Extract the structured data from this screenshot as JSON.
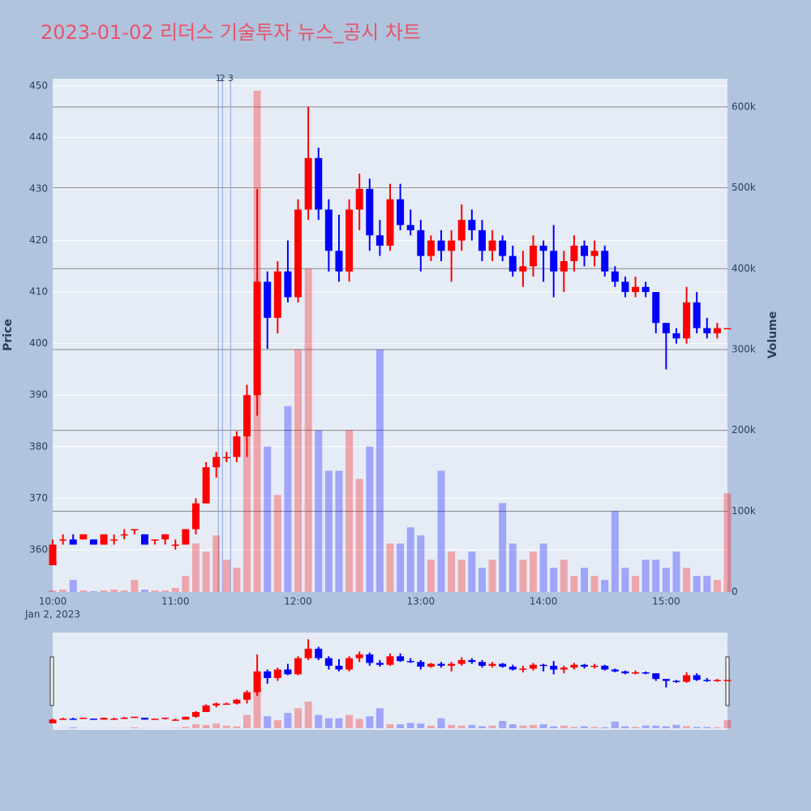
{
  "chart_data": {
    "type": "candlestick",
    "title": "2023-01-02 리더스 기술투자 뉴스_공시 차트",
    "y_label": "Price",
    "y2_label": "Volume",
    "x_sublabel": "Jan 2, 2023",
    "increasing_color": "#ff0000",
    "decreasing_color": "#0000ff",
    "x": [
      "2023-01-02 10:00",
      "2023-01-02 10:05",
      "2023-01-02 10:10",
      "2023-01-02 10:15",
      "2023-01-02 10:20",
      "2023-01-02 10:25",
      "2023-01-02 10:30",
      "2023-01-02 10:35",
      "2023-01-02 10:40",
      "2023-01-02 10:45",
      "2023-01-02 10:50",
      "2023-01-02 10:55",
      "2023-01-02 11:00",
      "2023-01-02 11:05",
      "2023-01-02 11:10",
      "2023-01-02 11:15",
      "2023-01-02 11:20",
      "2023-01-02 11:25",
      "2023-01-02 11:30",
      "2023-01-02 11:35",
      "2023-01-02 11:40",
      "2023-01-02 11:45",
      "2023-01-02 11:50",
      "2023-01-02 11:55",
      "2023-01-02 12:00",
      "2023-01-02 12:05",
      "2023-01-02 12:10",
      "2023-01-02 12:15",
      "2023-01-02 12:20",
      "2023-01-02 12:25",
      "2023-01-02 12:30",
      "2023-01-02 12:35",
      "2023-01-02 12:40",
      "2023-01-02 12:45",
      "2023-01-02 12:50",
      "2023-01-02 12:55",
      "2023-01-02 13:00",
      "2023-01-02 13:05",
      "2023-01-02 13:10",
      "2023-01-02 13:15",
      "2023-01-02 13:20",
      "2023-01-02 13:25",
      "2023-01-02 13:30",
      "2023-01-02 13:35",
      "2023-01-02 13:40",
      "2023-01-02 13:45",
      "2023-01-02 13:50",
      "2023-01-02 13:55",
      "2023-01-02 14:00",
      "2023-01-02 14:05",
      "2023-01-02 14:10",
      "2023-01-02 14:15",
      "2023-01-02 14:20",
      "2023-01-02 14:25",
      "2023-01-02 14:30",
      "2023-01-02 14:35",
      "2023-01-02 14:40",
      "2023-01-02 14:45",
      "2023-01-02 14:50",
      "2023-01-02 14:55",
      "2023-01-02 15:00",
      "2023-01-02 15:05",
      "2023-01-02 15:10",
      "2023-01-02 15:15",
      "2023-01-02 15:20",
      "2023-01-02 15:25",
      "2023-01-02 15:30"
    ],
    "open": [
      357,
      362,
      362,
      362,
      362,
      361,
      362,
      363,
      364,
      363,
      362,
      362,
      361,
      361,
      364,
      369,
      376,
      378,
      378,
      382,
      390,
      412,
      405,
      414,
      409,
      426,
      436,
      426,
      418,
      414,
      426,
      430,
      421,
      419,
      428,
      423,
      422,
      417,
      420,
      418,
      420,
      424,
      422,
      418,
      420,
      417,
      414,
      415,
      419,
      418,
      414,
      416,
      419,
      417,
      418,
      414,
      412,
      410,
      411,
      410,
      404,
      402,
      401,
      408,
      403,
      402,
      403
    ],
    "high": [
      362,
      363,
      363,
      363,
      362,
      363,
      363,
      364,
      364,
      363,
      362,
      363,
      362,
      364,
      370,
      377,
      379,
      379,
      383,
      392,
      430,
      414,
      416,
      420,
      428,
      446,
      438,
      428,
      425,
      428,
      433,
      432,
      424,
      431,
      431,
      426,
      424,
      421,
      422,
      422,
      427,
      426,
      424,
      422,
      421,
      419,
      418,
      421,
      420,
      423,
      418,
      421,
      420,
      420,
      419,
      415,
      413,
      413,
      412,
      410,
      404,
      403,
      411,
      410,
      405,
      404,
      403
    ],
    "low": [
      357,
      361,
      361,
      362,
      361,
      361,
      361,
      362,
      363,
      361,
      361,
      361,
      360,
      361,
      363,
      369,
      374,
      377,
      377,
      378,
      386,
      399,
      402,
      408,
      408,
      424,
      424,
      414,
      412,
      412,
      422,
      418,
      417,
      418,
      422,
      421,
      414,
      416,
      416,
      412,
      418,
      420,
      416,
      416,
      416,
      413,
      411,
      413,
      412,
      409,
      410,
      414,
      415,
      415,
      413,
      411,
      409,
      409,
      409,
      402,
      395,
      400,
      400,
      402,
      401,
      401,
      403
    ],
    "close": [
      361,
      362,
      361,
      363,
      361,
      363,
      362,
      363,
      364,
      361,
      362,
      363,
      361,
      364,
      369,
      376,
      378,
      378,
      382,
      390,
      412,
      405,
      414,
      409,
      426,
      436,
      426,
      418,
      414,
      426,
      430,
      421,
      419,
      428,
      423,
      422,
      417,
      420,
      418,
      420,
      424,
      422,
      418,
      420,
      417,
      414,
      415,
      419,
      418,
      414,
      416,
      419,
      417,
      418,
      414,
      412,
      410,
      411,
      410,
      404,
      402,
      401,
      408,
      403,
      402,
      403,
      403
    ],
    "volume": [
      2000,
      3000,
      15000,
      2000,
      1000,
      2000,
      3000,
      2000,
      15000,
      3000,
      2000,
      2000,
      5000,
      20000,
      60000,
      50000,
      70000,
      40000,
      30000,
      200000,
      620000,
      180000,
      120000,
      230000,
      300000,
      400000,
      200000,
      150000,
      150000,
      200000,
      140000,
      180000,
      300000,
      60000,
      60000,
      80000,
      70000,
      40000,
      150000,
      50000,
      40000,
      50000,
      30000,
      40000,
      110000,
      60000,
      40000,
      50000,
      60000,
      30000,
      40000,
      20000,
      30000,
      20000,
      15000,
      100000,
      30000,
      20000,
      40000,
      40000,
      30000,
      50000,
      30000,
      20000,
      20000,
      15000,
      122000
    ],
    "annotations": [
      {
        "x": "2023-01-02 11:21",
        "text": "1"
      },
      {
        "x": "2023-01-02 11:23",
        "text": "2"
      },
      {
        "x": "2023-01-02 11:27",
        "text": "3"
      }
    ],
    "xlim": [
      "2023-01-02 10:00",
      "2023-01-02 15:30"
    ],
    "xticks": [
      {
        "value": "2023-01-02 10:00",
        "label": "10:00"
      },
      {
        "value": "2023-01-02 11:00",
        "label": "11:00"
      },
      {
        "value": "2023-01-02 12:00",
        "label": "12:00"
      },
      {
        "value": "2023-01-02 13:00",
        "label": "13:00"
      },
      {
        "value": "2023-01-02 14:00",
        "label": "14:00"
      },
      {
        "value": "2023-01-02 15:00",
        "label": "15:00"
      }
    ],
    "ylim": [
      351.8,
      451.4
    ],
    "yticks": [
      360,
      370,
      380,
      390,
      400,
      410,
      420,
      430,
      440,
      450
    ],
    "y2lim": [
      0,
      635000
    ],
    "y2ticks": [
      0,
      {
        "value": 100000,
        "label": "100k"
      },
      {
        "value": 200000,
        "label": "200k"
      },
      {
        "value": 300000,
        "label": "300k"
      },
      {
        "value": 400000,
        "label": "400k"
      },
      {
        "value": 500000,
        "label": "500k"
      },
      {
        "value": 600000,
        "label": "600k"
      }
    ],
    "grid": true,
    "rangeslider": true
  }
}
